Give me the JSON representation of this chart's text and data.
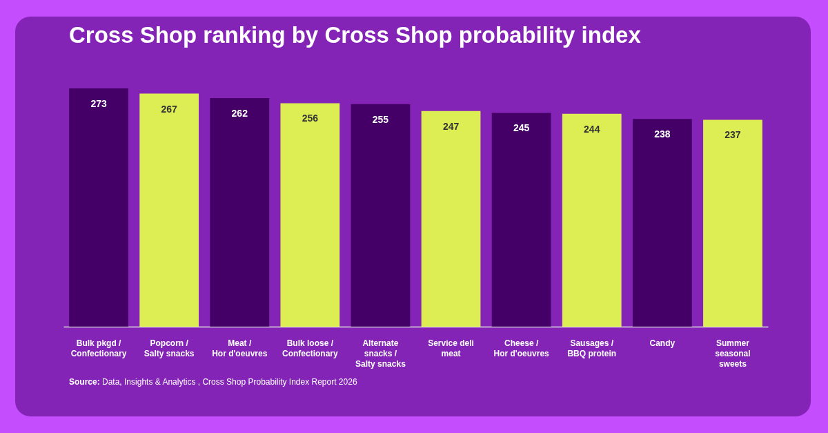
{
  "chart_data": {
    "type": "bar",
    "title": "Cross Shop ranking by Cross Shop probability index",
    "categories": [
      "Bulk pkgd /\nConfectionary",
      "Popcorn /\nSalty snacks",
      "Meat /\nHor d'oeuvres",
      "Bulk loose /\nConfectionary",
      "Alternate\nsnacks /\nSalty snacks",
      "Service deli\nmeat",
      "Cheese /\nHor d'oeuvres",
      "Sausages /\nBBQ protein",
      "Candy",
      "Summer\nseasonal\nsweets"
    ],
    "values": [
      273,
      267,
      262,
      256,
      255,
      247,
      245,
      244,
      238,
      237
    ],
    "colors": [
      "#440066",
      "#ddee55",
      "#440066",
      "#ddee55",
      "#440066",
      "#ddee55",
      "#440066",
      "#ddee55",
      "#440066",
      "#ddee55"
    ],
    "tick_labels": "x",
    "data_labels": true,
    "annotations": [
      "Source: Data, Insights & Analytics , Cross Shop Probability Index Report 2026"
    ]
  }
}
